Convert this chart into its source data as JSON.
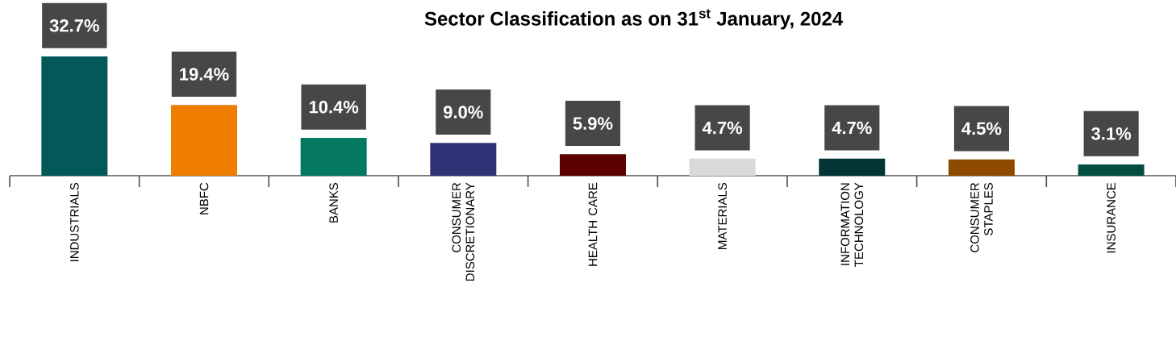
{
  "chart_data": {
    "type": "bar",
    "title": "Sector Classification as on 31$^{st}$ January, 2024",
    "categories": [
      "INDUSTRIALS",
      "NBFC",
      "BANKS",
      "CONSUMER DISCRETIONARY",
      "HEALTH CARE",
      "MATERIALS",
      "INFORMATION TECHNOLOGY",
      "CONSUMER STAPLES",
      "INSURANCE"
    ],
    "values": [
      32.7,
      19.4,
      10.4,
      9.0,
      5.9,
      4.7,
      4.7,
      4.5,
      3.1
    ],
    "colors": [
      "#03585a",
      "#ee7d00",
      "#047861",
      "#2e3476",
      "#5c0000",
      "#d9d9d9",
      "#023635",
      "#8e4b00",
      "#034e40"
    ],
    "value_labels": [
      "32.7%",
      "19.4%",
      "10.4%",
      "9.0%",
      "5.9%",
      "4.7%",
      "4.7%",
      "4.5%",
      "3.1%"
    ]
  }
}
